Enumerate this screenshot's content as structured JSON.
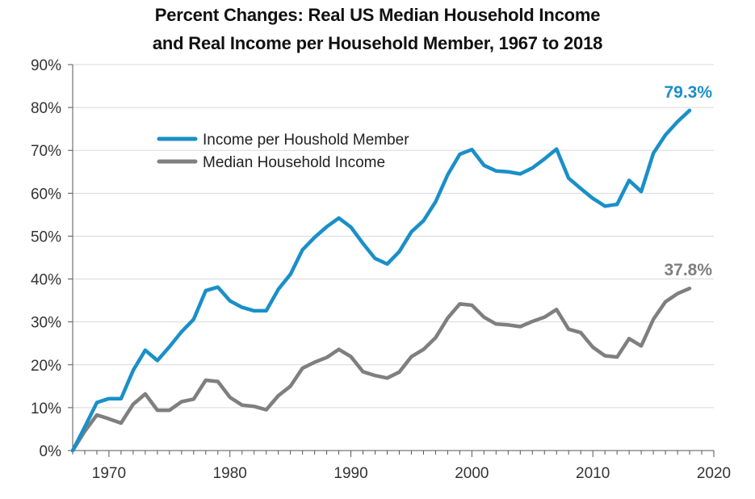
{
  "colors": {
    "series_blue": "#1a8fc8",
    "series_gray": "#7f7f7f",
    "grid": "#d9d9d9",
    "axis": "#555555"
  },
  "chart_data": {
    "type": "line",
    "title": "Percent Changes: Real US Median Household Income",
    "subtitle": "and Real Income per Household Member, 1967 to 2018",
    "xlabel": "",
    "ylabel": "",
    "xlim": [
      1967,
      2020
    ],
    "ylim": [
      0,
      90
    ],
    "x_ticks": [
      1970,
      1980,
      1990,
      2000,
      2010,
      2020
    ],
    "y_ticks": [
      0,
      10,
      20,
      30,
      40,
      50,
      60,
      70,
      80,
      90
    ],
    "y_tick_labels": [
      "0%",
      "10%",
      "20%",
      "30%",
      "40%",
      "50%",
      "60%",
      "70%",
      "80%",
      "90%"
    ],
    "grid": "horizontal",
    "legend_position": "upper-left",
    "x": [
      1967,
      1968,
      1969,
      1970,
      1971,
      1972,
      1973,
      1974,
      1975,
      1976,
      1977,
      1978,
      1979,
      1980,
      1981,
      1982,
      1983,
      1984,
      1985,
      1986,
      1987,
      1988,
      1989,
      1990,
      1991,
      1992,
      1993,
      1994,
      1995,
      1996,
      1997,
      1998,
      1999,
      2000,
      2001,
      2002,
      2003,
      2004,
      2005,
      2006,
      2007,
      2008,
      2009,
      2010,
      2011,
      2012,
      2013,
      2014,
      2015,
      2016,
      2017,
      2018
    ],
    "series": [
      {
        "name": "Income per Houshold Member",
        "color": "#1a8fc8",
        "values": [
          0,
          5.5,
          11.2,
          12.1,
          12.1,
          18.7,
          23.4,
          21.0,
          24.2,
          27.7,
          30.6,
          37.3,
          38.1,
          34.9,
          33.4,
          32.6,
          32.6,
          37.6,
          41.1,
          46.8,
          49.7,
          52.2,
          54.2,
          52.1,
          48.3,
          44.8,
          43.5,
          46.4,
          51.0,
          53.6,
          58.0,
          64.3,
          69.1,
          70.2,
          66.5,
          65.2,
          65.0,
          64.5,
          65.9,
          68.0,
          70.3,
          63.5,
          61.1,
          58.8,
          57.0,
          57.4,
          63.0,
          60.4,
          69.3,
          73.6,
          76.7,
          79.3
        ],
        "end_label": "79.3%"
      },
      {
        "name": "Median Household Income",
        "color": "#7f7f7f",
        "values": [
          0,
          4.5,
          8.3,
          7.4,
          6.4,
          10.8,
          13.2,
          9.4,
          9.4,
          11.4,
          12.0,
          16.4,
          16.1,
          12.4,
          10.6,
          10.3,
          9.5,
          12.8,
          15.0,
          19.2,
          20.6,
          21.7,
          23.6,
          21.9,
          18.4,
          17.5,
          16.9,
          18.3,
          21.9,
          23.6,
          26.3,
          30.9,
          34.2,
          33.9,
          31.1,
          29.5,
          29.3,
          28.9,
          30.1,
          31.1,
          32.9,
          28.3,
          27.5,
          24.1,
          22.1,
          21.8,
          26.1,
          24.4,
          30.6,
          34.7,
          36.6,
          37.8
        ],
        "end_label": "37.8%"
      }
    ]
  }
}
